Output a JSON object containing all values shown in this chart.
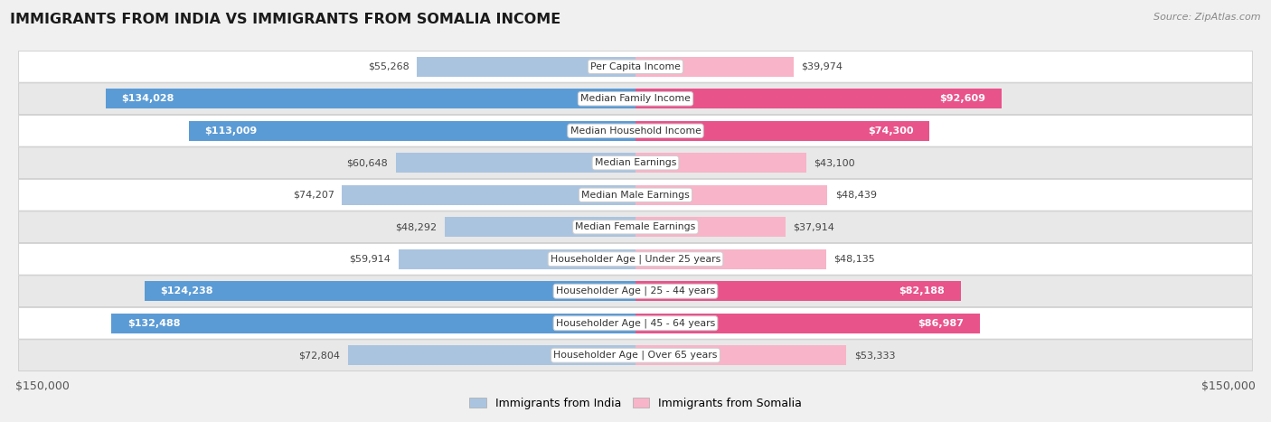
{
  "title": "IMMIGRANTS FROM INDIA VS IMMIGRANTS FROM SOMALIA INCOME",
  "source": "Source: ZipAtlas.com",
  "categories": [
    "Per Capita Income",
    "Median Family Income",
    "Median Household Income",
    "Median Earnings",
    "Median Male Earnings",
    "Median Female Earnings",
    "Householder Age | Under 25 years",
    "Householder Age | 25 - 44 years",
    "Householder Age | 45 - 64 years",
    "Householder Age | Over 65 years"
  ],
  "india_values": [
    55268,
    134028,
    113009,
    60648,
    74207,
    48292,
    59914,
    124238,
    132488,
    72804
  ],
  "somalia_values": [
    39974,
    92609,
    74300,
    43100,
    48439,
    37914,
    48135,
    82188,
    86987,
    53333
  ],
  "india_color_light": "#aac4e0",
  "india_color_dark": "#5b9bd5",
  "somalia_color_light": "#f8b4c8",
  "somalia_color_dark": "#e8538a",
  "india_dark_threshold": 90000,
  "somalia_dark_threshold": 70000,
  "max_value": 150000,
  "india_legend": "Immigrants from India",
  "somalia_legend": "Immigrants from Somalia",
  "background_color": "#f0f0f0",
  "row_bg_light": "#ffffff",
  "row_bg_dark": "#e8e8e8",
  "label_inside_color": "#ffffff",
  "label_outside_color": "#444444",
  "india_inside_threshold": 90000,
  "somalia_inside_threshold": 70000
}
